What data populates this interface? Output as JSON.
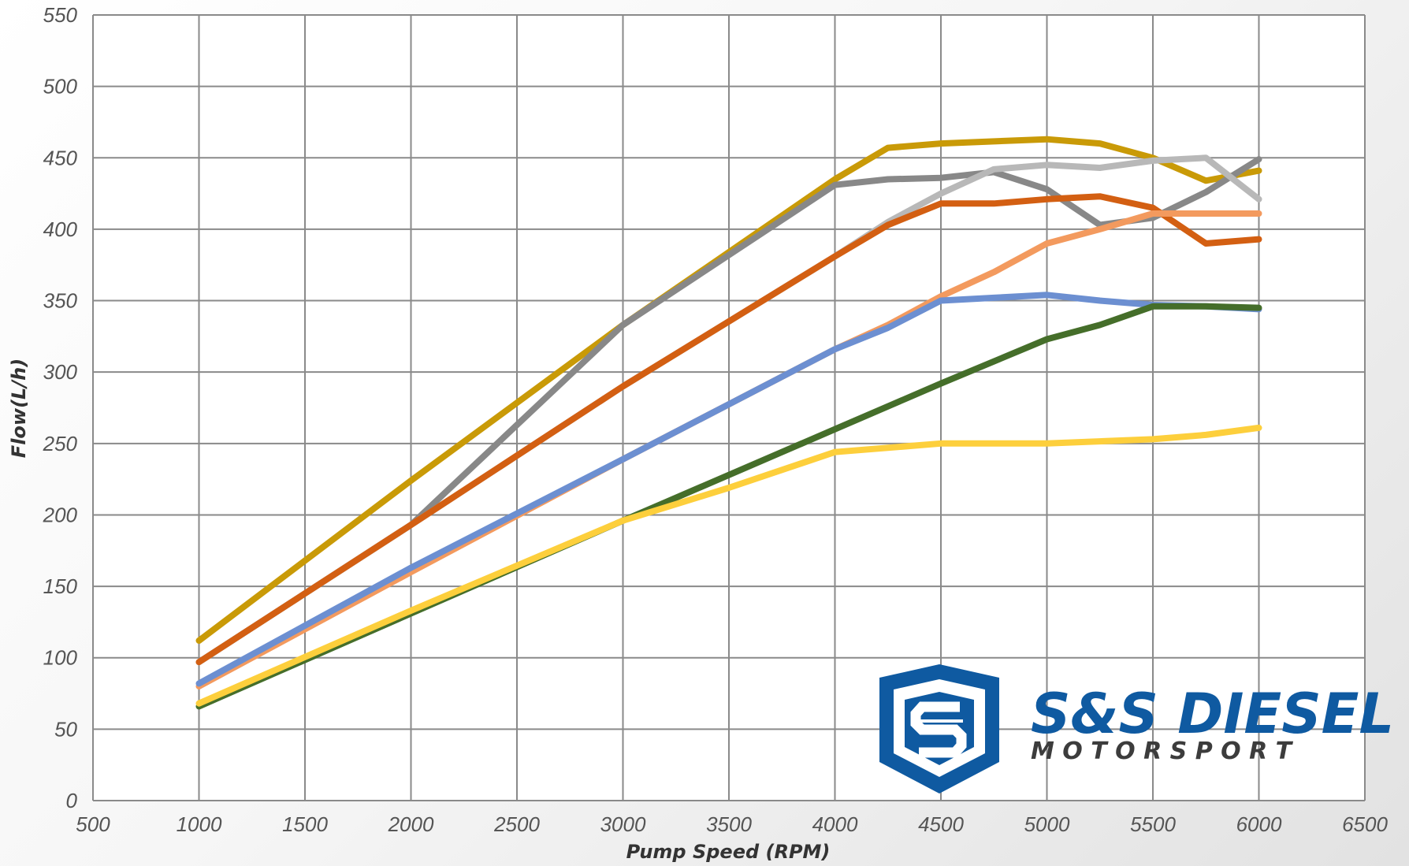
{
  "chart_data": {
    "type": "line",
    "title": "",
    "xlabel": "Pump Speed (RPM)",
    "ylabel": "Flow(L/h)",
    "xlim": [
      500,
      6500
    ],
    "ylim": [
      0,
      550
    ],
    "xticks": [
      500,
      1000,
      1500,
      2000,
      2500,
      3000,
      3500,
      4000,
      4500,
      5000,
      5500,
      6000,
      6500
    ],
    "yticks": [
      0,
      50,
      100,
      150,
      200,
      250,
      300,
      350,
      400,
      450,
      500,
      550
    ],
    "grid": true,
    "legend": "none",
    "series": [
      {
        "color": "#c99a07",
        "points": [
          [
            1000,
            112
          ],
          [
            2000,
            224
          ],
          [
            3000,
            333
          ],
          [
            4000,
            435
          ],
          [
            4250,
            457
          ],
          [
            4500,
            460
          ],
          [
            5000,
            463
          ],
          [
            5250,
            460
          ],
          [
            5500,
            450
          ],
          [
            5750,
            434
          ],
          [
            6000,
            441
          ]
        ]
      },
      {
        "color": "#888888",
        "points": [
          [
            1000,
            97
          ],
          [
            2000,
            193
          ],
          [
            3000,
            333
          ],
          [
            4000,
            431
          ],
          [
            4250,
            435
          ],
          [
            4500,
            436
          ],
          [
            4750,
            440
          ],
          [
            5000,
            428
          ],
          [
            5250,
            403
          ],
          [
            5500,
            408
          ],
          [
            5750,
            426
          ],
          [
            6000,
            449
          ]
        ]
      },
      {
        "color": "#b8b8b8",
        "points": [
          [
            1000,
            97
          ],
          [
            2000,
            193
          ],
          [
            3000,
            290
          ],
          [
            4000,
            381
          ],
          [
            4250,
            405
          ],
          [
            4500,
            425
          ],
          [
            4750,
            442
          ],
          [
            5000,
            445
          ],
          [
            5250,
            443
          ],
          [
            5500,
            448
          ],
          [
            5750,
            450
          ],
          [
            6000,
            421
          ]
        ]
      },
      {
        "color": "#d35f12",
        "points": [
          [
            1000,
            97
          ],
          [
            2000,
            193
          ],
          [
            3000,
            290
          ],
          [
            4000,
            381
          ],
          [
            4250,
            403
          ],
          [
            4500,
            418
          ],
          [
            4750,
            418
          ],
          [
            5000,
            421
          ],
          [
            5250,
            423
          ],
          [
            5500,
            415
          ],
          [
            5750,
            390
          ],
          [
            6000,
            393
          ]
        ]
      },
      {
        "color": "#f39a5e",
        "points": [
          [
            1000,
            80
          ],
          [
            2000,
            160
          ],
          [
            3000,
            239
          ],
          [
            4000,
            316
          ],
          [
            4250,
            333
          ],
          [
            4500,
            353
          ],
          [
            4750,
            370
          ],
          [
            5000,
            390
          ],
          [
            5250,
            400
          ],
          [
            5500,
            411
          ],
          [
            5750,
            411
          ],
          [
            6000,
            411
          ]
        ]
      },
      {
        "color": "#6c8fd1",
        "points": [
          [
            1000,
            82
          ],
          [
            2000,
            163
          ],
          [
            3000,
            239
          ],
          [
            4000,
            316
          ],
          [
            4250,
            331
          ],
          [
            4500,
            350
          ],
          [
            4750,
            352
          ],
          [
            5000,
            354
          ],
          [
            5250,
            350
          ],
          [
            5500,
            347
          ],
          [
            5750,
            346
          ],
          [
            6000,
            344
          ]
        ]
      },
      {
        "color": "#456e2a",
        "points": [
          [
            1000,
            66
          ],
          [
            2000,
            131
          ],
          [
            3000,
            196
          ],
          [
            4000,
            260
          ],
          [
            4500,
            292
          ],
          [
            5000,
            323
          ],
          [
            5250,
            333
          ],
          [
            5500,
            346
          ],
          [
            5750,
            346
          ],
          [
            6000,
            345
          ]
        ]
      },
      {
        "color": "#fdcf3c",
        "points": [
          [
            1000,
            68
          ],
          [
            2000,
            133
          ],
          [
            3000,
            196
          ],
          [
            3500,
            219
          ],
          [
            4000,
            244
          ],
          [
            4500,
            250
          ],
          [
            5000,
            250
          ],
          [
            5500,
            253
          ],
          [
            5750,
            256
          ],
          [
            6000,
            261
          ]
        ]
      }
    ]
  },
  "logo": {
    "brand": "S&S DIESEL",
    "sub": "M O T O R S P O R T",
    "primary_color": "#0f5aa1",
    "secondary_color": "#3c3c3c"
  }
}
